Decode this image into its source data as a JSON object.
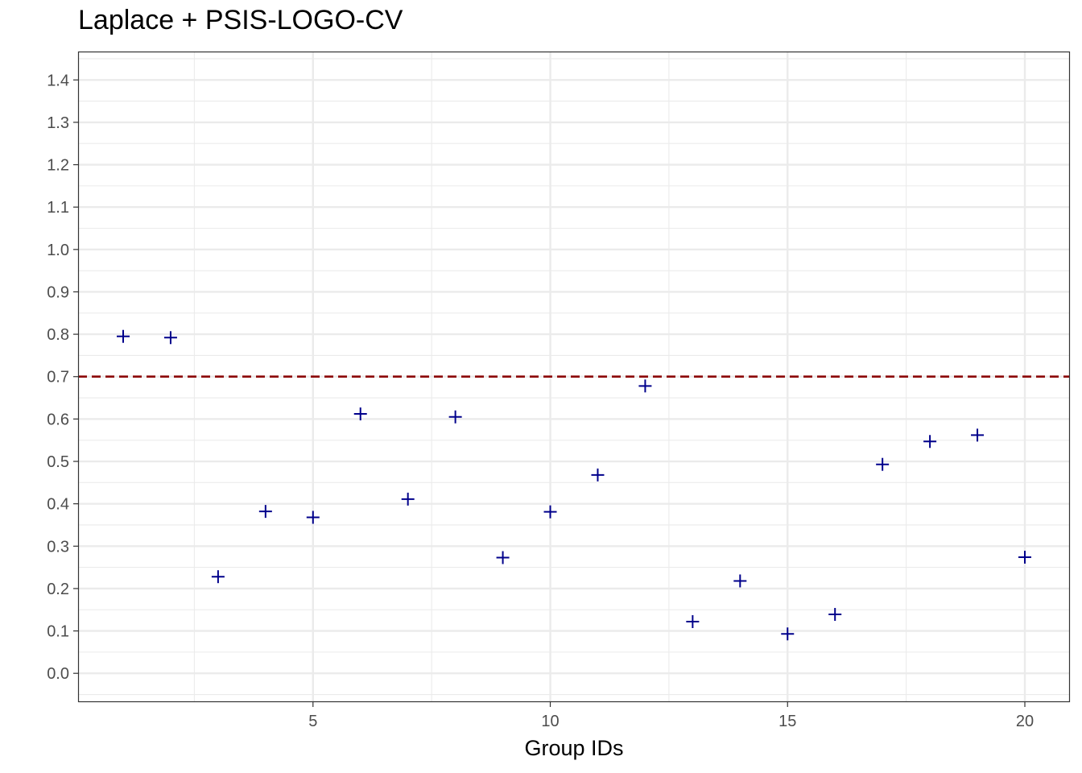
{
  "chart_data": {
    "type": "scatter",
    "title": "Laplace + PSIS-LOGO-CV",
    "xlabel": "Group IDs",
    "ylabel": "",
    "xlim": [
      0.05,
      20.95
    ],
    "ylim": [
      -0.068,
      1.467
    ],
    "x_ticks": [
      5,
      10,
      15,
      20
    ],
    "x_tick_labels": [
      "5",
      "10",
      "15",
      "20"
    ],
    "y_ticks": [
      0.0,
      0.1,
      0.2,
      0.3,
      0.4,
      0.5,
      0.6,
      0.7,
      0.8,
      0.9,
      1.0,
      1.1,
      1.2,
      1.3,
      1.4
    ],
    "y_tick_labels": [
      "0.0",
      "0.1",
      "0.2",
      "0.3",
      "0.4",
      "0.5",
      "0.6",
      "0.7",
      "0.8",
      "0.9",
      "1.0",
      "1.1",
      "1.2",
      "1.3",
      "1.4"
    ],
    "grid": true,
    "marker": "plus",
    "series": [
      {
        "x": [
          1,
          2,
          3,
          4,
          5,
          6,
          7,
          8,
          9,
          10,
          11,
          12,
          13,
          14,
          15,
          16,
          17,
          18,
          19,
          20
        ],
        "y": [
          0.795,
          0.792,
          0.228,
          0.382,
          0.368,
          0.612,
          0.411,
          0.605,
          0.273,
          0.381,
          0.468,
          0.678,
          0.122,
          0.218,
          0.093,
          0.139,
          0.493,
          0.547,
          0.562,
          0.274
        ],
        "color": "#00008b"
      }
    ],
    "hline": {
      "y": 0.7,
      "style": "dashed",
      "color": "#8b0000"
    }
  }
}
